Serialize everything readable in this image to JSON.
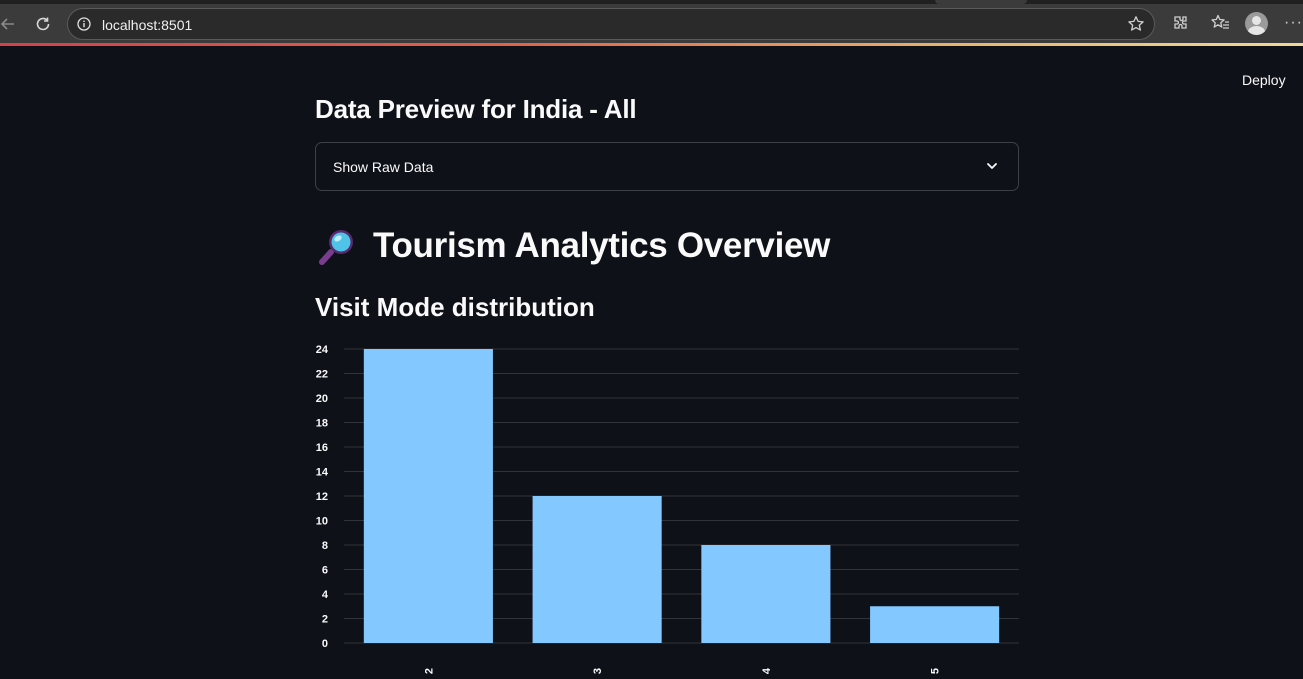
{
  "browser": {
    "url": "localhost:8501"
  },
  "app": {
    "deploy_label": "Deploy",
    "section_title": "Data Preview for India - All",
    "expander_label": "Show Raw Data",
    "page_title": "Tourism Analytics Overview",
    "page_title_icon": "magnifying-glass-icon",
    "chart_heading": "Visit Mode distribution"
  },
  "colors": {
    "background": "#0e1117",
    "bar": "#83c9ff",
    "text": "#fafafa"
  },
  "chart_data": {
    "type": "bar",
    "categories": [
      "2",
      "3",
      "4",
      "5"
    ],
    "values": [
      24,
      12,
      8,
      3
    ],
    "ylim": [
      0,
      24
    ],
    "yticks": [
      0,
      2,
      4,
      6,
      8,
      10,
      12,
      14,
      16,
      18,
      20,
      22,
      24
    ],
    "grid": true,
    "x_tick_rotation": "vertical",
    "title": "",
    "xlabel": "",
    "ylabel": ""
  }
}
